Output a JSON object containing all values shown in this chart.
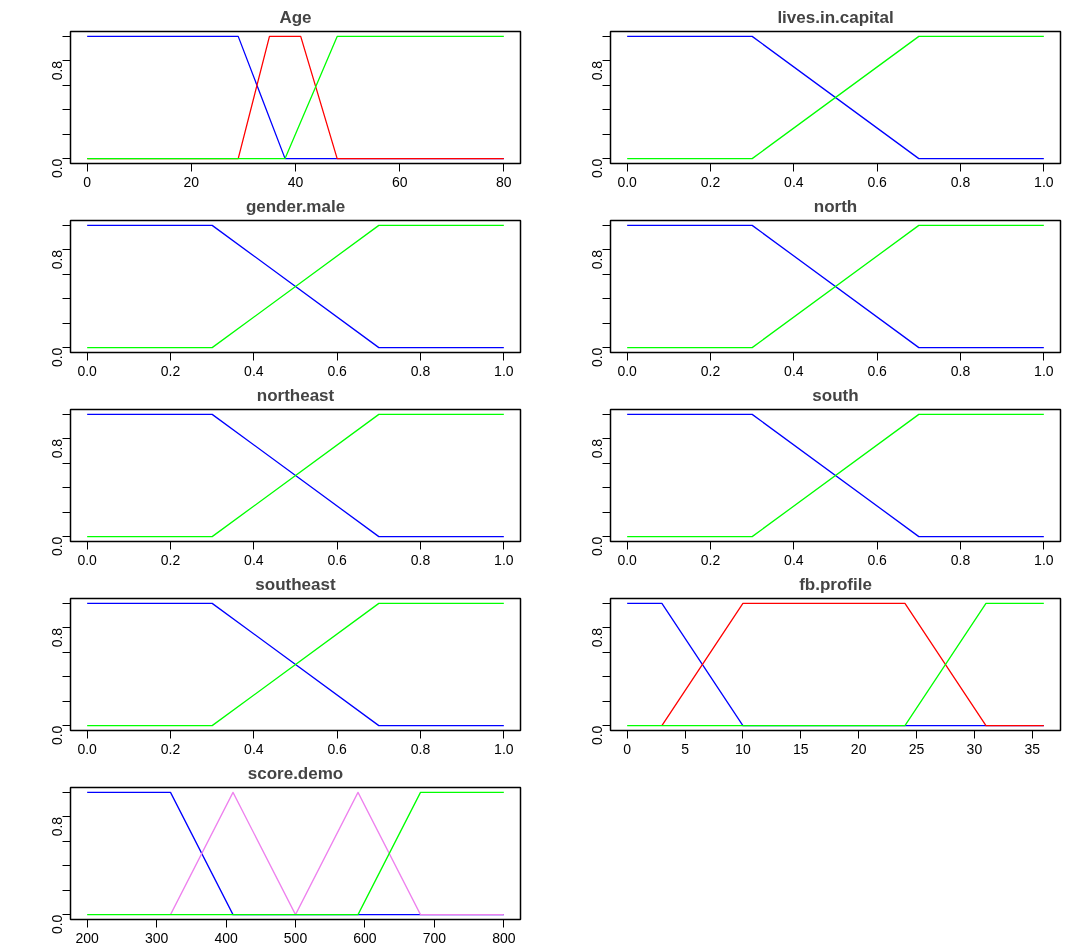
{
  "chart_data": [
    {
      "type": "line",
      "title": "Age",
      "xlim": [
        -3.2,
        83.2
      ],
      "xticks": [
        0,
        20,
        40,
        60,
        80
      ],
      "ylim": [
        -0.04,
        1.04
      ],
      "yticks": [
        {
          "value": 0,
          "label": "0.0"
        },
        {
          "value": 0.2,
          "label": null
        },
        {
          "value": 0.4,
          "label": null
        },
        {
          "value": 0.6,
          "label": null
        },
        {
          "value": 0.8,
          "label": "0.8"
        },
        {
          "value": 1,
          "label": null
        }
      ],
      "grid": false,
      "series": [
        {
          "color": "#0000ff",
          "x": [
            0,
            29,
            38,
            80
          ],
          "values": [
            1,
            1,
            0,
            0
          ]
        },
        {
          "color": "#ff0000",
          "x": [
            0,
            29,
            35,
            41,
            48,
            80
          ],
          "values": [
            0,
            0,
            1,
            1,
            0,
            0
          ]
        },
        {
          "color": "#00ff00",
          "x": [
            0,
            38,
            48,
            80
          ],
          "values": [
            0,
            0,
            1,
            1
          ]
        }
      ]
    },
    {
      "type": "line",
      "title": "lives.in.capital",
      "xlim": [
        -0.04,
        1.04
      ],
      "xticks": [
        {
          "value": 0,
          "label": "0.0"
        },
        {
          "value": 0.2,
          "label": "0.2"
        },
        {
          "value": 0.4,
          "label": "0.4"
        },
        {
          "value": 0.6,
          "label": "0.6"
        },
        {
          "value": 0.8,
          "label": "0.8"
        },
        {
          "value": 1,
          "label": "1.0"
        }
      ],
      "ylim": [
        -0.04,
        1.04
      ],
      "yticks": [
        {
          "value": 0,
          "label": "0.0"
        },
        {
          "value": 0.2,
          "label": null
        },
        {
          "value": 0.4,
          "label": null
        },
        {
          "value": 0.6,
          "label": null
        },
        {
          "value": 0.8,
          "label": "0.8"
        },
        {
          "value": 1,
          "label": null
        }
      ],
      "grid": false,
      "series": [
        {
          "color": "#0000ff",
          "x": [
            0,
            0.3,
            0.7,
            1
          ],
          "values": [
            1,
            1,
            0,
            0
          ]
        },
        {
          "color": "#00ff00",
          "x": [
            0,
            0.3,
            0.7,
            1
          ],
          "values": [
            0,
            0,
            1,
            1
          ]
        }
      ]
    },
    {
      "type": "line",
      "title": "gender.male",
      "xlim": [
        -0.04,
        1.04
      ],
      "xticks": [
        {
          "value": 0,
          "label": "0.0"
        },
        {
          "value": 0.2,
          "label": "0.2"
        },
        {
          "value": 0.4,
          "label": "0.4"
        },
        {
          "value": 0.6,
          "label": "0.6"
        },
        {
          "value": 0.8,
          "label": "0.8"
        },
        {
          "value": 1,
          "label": "1.0"
        }
      ],
      "ylim": [
        -0.04,
        1.04
      ],
      "yticks": [
        {
          "value": 0,
          "label": "0.0"
        },
        {
          "value": 0.2,
          "label": null
        },
        {
          "value": 0.4,
          "label": null
        },
        {
          "value": 0.6,
          "label": null
        },
        {
          "value": 0.8,
          "label": "0.8"
        },
        {
          "value": 1,
          "label": null
        }
      ],
      "grid": false,
      "series": [
        {
          "color": "#0000ff",
          "x": [
            0,
            0.3,
            0.7,
            1
          ],
          "values": [
            1,
            1,
            0,
            0
          ]
        },
        {
          "color": "#00ff00",
          "x": [
            0,
            0.3,
            0.7,
            1
          ],
          "values": [
            0,
            0,
            1,
            1
          ]
        }
      ]
    },
    {
      "type": "line",
      "title": "north",
      "xlim": [
        -0.04,
        1.04
      ],
      "xticks": [
        {
          "value": 0,
          "label": "0.0"
        },
        {
          "value": 0.2,
          "label": "0.2"
        },
        {
          "value": 0.4,
          "label": "0.4"
        },
        {
          "value": 0.6,
          "label": "0.6"
        },
        {
          "value": 0.8,
          "label": "0.8"
        },
        {
          "value": 1,
          "label": "1.0"
        }
      ],
      "ylim": [
        -0.04,
        1.04
      ],
      "yticks": [
        {
          "value": 0,
          "label": "0.0"
        },
        {
          "value": 0.2,
          "label": null
        },
        {
          "value": 0.4,
          "label": null
        },
        {
          "value": 0.6,
          "label": null
        },
        {
          "value": 0.8,
          "label": "0.8"
        },
        {
          "value": 1,
          "label": null
        }
      ],
      "grid": false,
      "series": [
        {
          "color": "#0000ff",
          "x": [
            0,
            0.3,
            0.7,
            1
          ],
          "values": [
            1,
            1,
            0,
            0
          ]
        },
        {
          "color": "#00ff00",
          "x": [
            0,
            0.3,
            0.7,
            1
          ],
          "values": [
            0,
            0,
            1,
            1
          ]
        }
      ]
    },
    {
      "type": "line",
      "title": "northeast",
      "xlim": [
        -0.04,
        1.04
      ],
      "xticks": [
        {
          "value": 0,
          "label": "0.0"
        },
        {
          "value": 0.2,
          "label": "0.2"
        },
        {
          "value": 0.4,
          "label": "0.4"
        },
        {
          "value": 0.6,
          "label": "0.6"
        },
        {
          "value": 0.8,
          "label": "0.8"
        },
        {
          "value": 1,
          "label": "1.0"
        }
      ],
      "ylim": [
        -0.04,
        1.04
      ],
      "yticks": [
        {
          "value": 0,
          "label": "0.0"
        },
        {
          "value": 0.2,
          "label": null
        },
        {
          "value": 0.4,
          "label": null
        },
        {
          "value": 0.6,
          "label": null
        },
        {
          "value": 0.8,
          "label": "0.8"
        },
        {
          "value": 1,
          "label": null
        }
      ],
      "grid": false,
      "series": [
        {
          "color": "#0000ff",
          "x": [
            0,
            0.3,
            0.7,
            1
          ],
          "values": [
            1,
            1,
            0,
            0
          ]
        },
        {
          "color": "#00ff00",
          "x": [
            0,
            0.3,
            0.7,
            1
          ],
          "values": [
            0,
            0,
            1,
            1
          ]
        }
      ]
    },
    {
      "type": "line",
      "title": "south",
      "xlim": [
        -0.04,
        1.04
      ],
      "xticks": [
        {
          "value": 0,
          "label": "0.0"
        },
        {
          "value": 0.2,
          "label": "0.2"
        },
        {
          "value": 0.4,
          "label": "0.4"
        },
        {
          "value": 0.6,
          "label": "0.6"
        },
        {
          "value": 0.8,
          "label": "0.8"
        },
        {
          "value": 1,
          "label": "1.0"
        }
      ],
      "ylim": [
        -0.04,
        1.04
      ],
      "yticks": [
        {
          "value": 0,
          "label": "0.0"
        },
        {
          "value": 0.2,
          "label": null
        },
        {
          "value": 0.4,
          "label": null
        },
        {
          "value": 0.6,
          "label": null
        },
        {
          "value": 0.8,
          "label": "0.8"
        },
        {
          "value": 1,
          "label": null
        }
      ],
      "grid": false,
      "series": [
        {
          "color": "#0000ff",
          "x": [
            0,
            0.3,
            0.7,
            1
          ],
          "values": [
            1,
            1,
            0,
            0
          ]
        },
        {
          "color": "#00ff00",
          "x": [
            0,
            0.3,
            0.7,
            1
          ],
          "values": [
            0,
            0,
            1,
            1
          ]
        }
      ]
    },
    {
      "type": "line",
      "title": "southeast",
      "xlim": [
        -0.04,
        1.04
      ],
      "xticks": [
        {
          "value": 0,
          "label": "0.0"
        },
        {
          "value": 0.2,
          "label": "0.2"
        },
        {
          "value": 0.4,
          "label": "0.4"
        },
        {
          "value": 0.6,
          "label": "0.6"
        },
        {
          "value": 0.8,
          "label": "0.8"
        },
        {
          "value": 1,
          "label": "1.0"
        }
      ],
      "ylim": [
        -0.04,
        1.04
      ],
      "yticks": [
        {
          "value": 0,
          "label": "0.0"
        },
        {
          "value": 0.2,
          "label": null
        },
        {
          "value": 0.4,
          "label": null
        },
        {
          "value": 0.6,
          "label": null
        },
        {
          "value": 0.8,
          "label": "0.8"
        },
        {
          "value": 1,
          "label": null
        }
      ],
      "grid": false,
      "series": [
        {
          "color": "#0000ff",
          "x": [
            0,
            0.3,
            0.7,
            1
          ],
          "values": [
            1,
            1,
            0,
            0
          ]
        },
        {
          "color": "#00ff00",
          "x": [
            0,
            0.3,
            0.7,
            1
          ],
          "values": [
            0,
            0,
            1,
            1
          ]
        }
      ]
    },
    {
      "type": "line",
      "title": "fb.profile",
      "xlim": [
        -1.44,
        37.44
      ],
      "xticks": [
        0,
        5,
        10,
        15,
        20,
        25,
        30,
        35
      ],
      "ylim": [
        -0.04,
        1.04
      ],
      "yticks": [
        {
          "value": 0,
          "label": "0.0"
        },
        {
          "value": 0.2,
          "label": null
        },
        {
          "value": 0.4,
          "label": null
        },
        {
          "value": 0.6,
          "label": null
        },
        {
          "value": 0.8,
          "label": "0.8"
        },
        {
          "value": 1,
          "label": null
        }
      ],
      "grid": false,
      "series": [
        {
          "color": "#0000ff",
          "x": [
            0,
            3,
            10,
            36
          ],
          "values": [
            1,
            1,
            0,
            0
          ]
        },
        {
          "color": "#ff0000",
          "x": [
            3,
            10,
            24,
            31,
            36
          ],
          "values": [
            0,
            1,
            1,
            0,
            0
          ]
        },
        {
          "color": "#00ff00",
          "x": [
            0,
            24,
            31,
            36
          ],
          "values": [
            0,
            0,
            1,
            1
          ]
        }
      ]
    },
    {
      "type": "line",
      "title": "score.demo",
      "xlim": [
        176,
        824
      ],
      "xticks": [
        200,
        300,
        400,
        500,
        600,
        700,
        800
      ],
      "ylim": [
        -0.04,
        1.04
      ],
      "yticks": [
        {
          "value": 0,
          "label": "0.0"
        },
        {
          "value": 0.2,
          "label": null
        },
        {
          "value": 0.4,
          "label": null
        },
        {
          "value": 0.6,
          "label": null
        },
        {
          "value": 0.8,
          "label": "0.8"
        },
        {
          "value": 1,
          "label": null
        }
      ],
      "grid": false,
      "series": [
        {
          "color": "#0000ff",
          "x": [
            200,
            320,
            410,
            800
          ],
          "values": [
            1,
            1,
            0,
            0
          ]
        },
        {
          "color": "#ee82ee",
          "x": [
            320,
            410,
            500,
            590,
            680,
            800
          ],
          "values": [
            0,
            1,
            0,
            1,
            0,
            0
          ]
        },
        {
          "color": "#00ff00",
          "x": [
            200,
            590,
            680,
            800
          ],
          "values": [
            0,
            0,
            1,
            1
          ]
        }
      ]
    }
  ]
}
